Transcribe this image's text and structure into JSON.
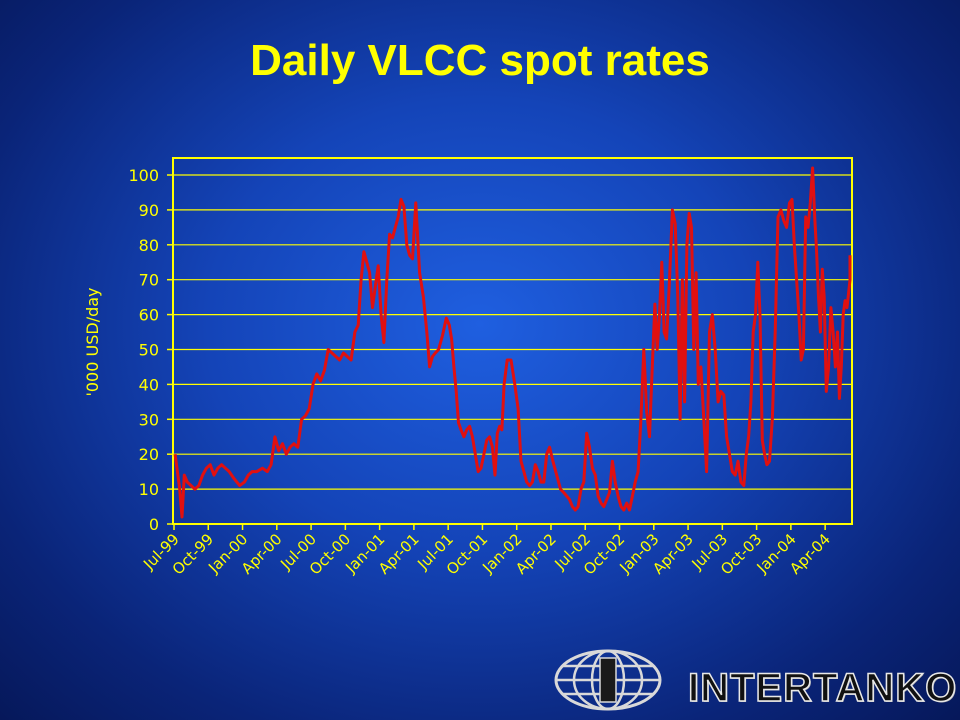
{
  "slide": {
    "title": "Daily VLCC spot rates"
  },
  "brand": {
    "name": "INTERTANKO"
  },
  "colors": {
    "axis": "#ffff00",
    "line": "#e01010",
    "background": "#1444b8"
  },
  "chart_data": {
    "type": "line",
    "title": "Daily VLCC spot rates",
    "xlabel": "",
    "ylabel": "'000 USD/day",
    "ylim": [
      0,
      100
    ],
    "yticks": [
      0,
      10,
      20,
      30,
      40,
      50,
      60,
      70,
      80,
      90,
      100
    ],
    "xlim": [
      "1999-07",
      "2004-06"
    ],
    "xtick_labels": [
      "Jul-99",
      "Oct-99",
      "Jan-00",
      "Apr-00",
      "Jul-00",
      "Oct-00",
      "Jan-01",
      "Apr-01",
      "Jul-01",
      "Oct-01",
      "Jan-02",
      "Apr-02",
      "Jul-02",
      "Oct-02",
      "Jan-03",
      "Apr-03",
      "Jul-03",
      "Oct-03",
      "Jan-04",
      "Apr-04"
    ],
    "grid": true,
    "legend": "none",
    "series": [
      {
        "color": "#e01010",
        "points": [
          [
            "1999-07",
            20
          ],
          [
            "1999-07",
            15
          ],
          [
            "1999-07",
            10
          ],
          [
            "1999-07",
            2
          ],
          [
            "1999-07",
            14
          ],
          [
            "1999-08",
            12
          ],
          [
            "1999-08",
            11
          ],
          [
            "1999-08",
            10
          ],
          [
            "1999-09",
            11
          ],
          [
            "1999-09",
            14
          ],
          [
            "1999-09",
            16
          ],
          [
            "1999-10",
            17
          ],
          [
            "1999-10",
            14
          ],
          [
            "1999-10",
            16
          ],
          [
            "1999-11",
            17
          ],
          [
            "1999-11",
            16
          ],
          [
            "1999-11",
            15
          ],
          [
            "1999-12",
            13
          ],
          [
            "1999-12",
            11
          ],
          [
            "2000-01",
            12
          ],
          [
            "2000-01",
            14
          ],
          [
            "2000-01",
            15
          ],
          [
            "2000-02",
            15
          ],
          [
            "2000-02",
            16
          ],
          [
            "2000-03",
            15
          ],
          [
            "2000-03",
            17
          ],
          [
            "2000-03",
            25
          ],
          [
            "2000-04",
            21
          ],
          [
            "2000-04",
            23
          ],
          [
            "2000-04",
            20
          ],
          [
            "2000-05",
            22
          ],
          [
            "2000-05",
            23
          ],
          [
            "2000-05",
            22
          ],
          [
            "2000-06",
            30
          ],
          [
            "2000-06",
            31
          ],
          [
            "2000-06",
            33
          ],
          [
            "2000-07",
            40
          ],
          [
            "2000-07",
            43
          ],
          [
            "2000-07",
            41
          ],
          [
            "2000-08",
            44
          ],
          [
            "2000-08",
            50
          ],
          [
            "2000-08",
            49
          ],
          [
            "2000-09",
            48
          ],
          [
            "2000-09",
            47
          ],
          [
            "2000-09",
            49
          ],
          [
            "2000-10",
            48
          ],
          [
            "2000-10",
            47
          ],
          [
            "2000-10",
            55
          ],
          [
            "2000-11",
            57
          ],
          [
            "2000-11",
            70
          ],
          [
            "2000-11",
            78
          ],
          [
            "2000-11",
            75
          ],
          [
            "2000-12",
            72
          ],
          [
            "2000-12",
            62
          ],
          [
            "2000-12",
            68
          ],
          [
            "2000-12",
            74
          ],
          [
            "2001-01",
            60
          ],
          [
            "2001-01",
            52
          ],
          [
            "2001-01",
            70
          ],
          [
            "2001-01",
            83
          ],
          [
            "2001-02",
            82
          ],
          [
            "2001-02",
            85
          ],
          [
            "2001-02",
            88
          ],
          [
            "2001-02",
            93
          ],
          [
            "2001-03",
            91
          ],
          [
            "2001-03",
            80
          ],
          [
            "2001-03",
            77
          ],
          [
            "2001-03",
            76
          ],
          [
            "2001-04",
            92
          ],
          [
            "2001-04",
            72
          ],
          [
            "2001-04",
            65
          ],
          [
            "2001-05",
            55
          ],
          [
            "2001-05",
            45
          ],
          [
            "2001-05",
            48
          ],
          [
            "2001-05",
            49
          ],
          [
            "2001-06",
            50
          ],
          [
            "2001-06",
            54
          ],
          [
            "2001-06",
            59
          ],
          [
            "2001-07",
            57
          ],
          [
            "2001-07",
            53
          ],
          [
            "2001-07",
            45
          ],
          [
            "2001-07",
            38
          ],
          [
            "2001-07",
            29
          ],
          [
            "2001-08",
            27
          ],
          [
            "2001-08",
            25
          ],
          [
            "2001-08",
            27
          ],
          [
            "2001-08",
            28
          ],
          [
            "2001-09",
            25
          ],
          [
            "2001-09",
            20
          ],
          [
            "2001-09",
            15
          ],
          [
            "2001-09",
            16
          ],
          [
            "2001-10",
            20
          ],
          [
            "2001-10",
            24
          ],
          [
            "2001-10",
            25
          ],
          [
            "2001-10",
            22
          ],
          [
            "2001-11",
            14
          ],
          [
            "2001-11",
            26
          ],
          [
            "2001-11",
            28
          ],
          [
            "2001-11",
            27
          ],
          [
            "2001-11",
            40
          ],
          [
            "2001-12",
            47
          ],
          [
            "2001-12",
            47
          ],
          [
            "2001-12",
            40
          ],
          [
            "2002-01",
            33
          ],
          [
            "2002-01",
            18
          ],
          [
            "2002-01",
            15
          ],
          [
            "2002-01",
            12
          ],
          [
            "2002-02",
            11
          ],
          [
            "2002-02",
            12
          ],
          [
            "2002-02",
            17
          ],
          [
            "2002-02",
            15
          ],
          [
            "2002-03",
            12
          ],
          [
            "2002-03",
            12
          ],
          [
            "2002-03",
            20
          ],
          [
            "2002-03",
            22
          ],
          [
            "2002-04",
            18
          ],
          [
            "2002-04",
            14
          ],
          [
            "2002-04",
            10
          ],
          [
            "2002-05",
            9
          ],
          [
            "2002-05",
            8
          ],
          [
            "2002-05",
            7
          ],
          [
            "2002-05",
            5
          ],
          [
            "2002-06",
            4
          ],
          [
            "2002-06",
            5
          ],
          [
            "2002-06",
            10
          ],
          [
            "2002-06",
            12
          ],
          [
            "2002-07",
            26
          ],
          [
            "2002-07",
            22
          ],
          [
            "2002-07",
            16
          ],
          [
            "2002-07",
            14
          ],
          [
            "2002-08",
            8
          ],
          [
            "2002-08",
            6
          ],
          [
            "2002-08",
            5
          ],
          [
            "2002-08",
            7
          ],
          [
            "2002-09",
            9
          ],
          [
            "2002-09",
            18
          ],
          [
            "2002-09",
            12
          ],
          [
            "2002-09",
            8
          ],
          [
            "2002-10",
            5
          ],
          [
            "2002-10",
            4
          ],
          [
            "2002-10",
            6
          ],
          [
            "2002-10",
            4
          ],
          [
            "2002-11",
            8
          ],
          [
            "2002-11",
            12
          ],
          [
            "2002-11",
            15
          ],
          [
            "2002-11",
            30
          ],
          [
            "2002-12",
            50
          ],
          [
            "2002-12",
            32
          ],
          [
            "2002-12",
            25
          ],
          [
            "2002-12",
            46
          ],
          [
            "2003-01",
            63
          ],
          [
            "2003-01",
            50
          ],
          [
            "2003-01",
            60
          ],
          [
            "2003-01",
            75
          ],
          [
            "2003-01",
            55
          ],
          [
            "2003-02",
            53
          ],
          [
            "2003-02",
            70
          ],
          [
            "2003-02",
            90
          ],
          [
            "2003-02",
            86
          ],
          [
            "2003-03",
            65
          ],
          [
            "2003-03",
            30
          ],
          [
            "2003-03",
            70
          ],
          [
            "2003-03",
            35
          ],
          [
            "2003-03",
            80
          ],
          [
            "2003-04",
            89
          ],
          [
            "2003-04",
            85
          ],
          [
            "2003-04",
            50
          ],
          [
            "2003-04",
            72
          ],
          [
            "2003-04",
            40
          ],
          [
            "2003-05",
            45
          ],
          [
            "2003-05",
            30
          ],
          [
            "2003-05",
            15
          ],
          [
            "2003-05",
            55
          ],
          [
            "2003-06",
            60
          ],
          [
            "2003-06",
            50
          ],
          [
            "2003-06",
            35
          ],
          [
            "2003-06",
            38
          ],
          [
            "2003-07",
            37
          ],
          [
            "2003-07",
            25
          ],
          [
            "2003-07",
            20
          ],
          [
            "2003-07",
            15
          ],
          [
            "2003-08",
            14
          ],
          [
            "2003-08",
            18
          ],
          [
            "2003-08",
            12
          ],
          [
            "2003-08",
            11
          ],
          [
            "2003-09",
            20
          ],
          [
            "2003-09",
            25
          ],
          [
            "2003-09",
            35
          ],
          [
            "2003-09",
            55
          ],
          [
            "2003-09",
            60
          ],
          [
            "2003-10",
            75
          ],
          [
            "2003-10",
            60
          ],
          [
            "2003-10",
            24
          ],
          [
            "2003-10",
            20
          ],
          [
            "2003-10",
            17
          ],
          [
            "2003-11",
            18
          ],
          [
            "2003-11",
            30
          ],
          [
            "2003-11",
            55
          ],
          [
            "2003-11",
            88
          ],
          [
            "2003-12",
            90
          ],
          [
            "2003-12",
            87
          ],
          [
            "2003-12",
            85
          ],
          [
            "2003-12",
            92
          ],
          [
            "2004-01",
            93
          ],
          [
            "2004-01",
            80
          ],
          [
            "2004-01",
            70
          ],
          [
            "2004-01",
            60
          ],
          [
            "2004-01",
            47
          ],
          [
            "2004-02",
            50
          ],
          [
            "2004-02",
            88
          ],
          [
            "2004-02",
            85
          ],
          [
            "2004-02",
            92
          ],
          [
            "2004-02",
            102
          ],
          [
            "2004-03",
            88
          ],
          [
            "2004-03",
            78
          ],
          [
            "2004-03",
            65
          ],
          [
            "2004-03",
            55
          ],
          [
            "2004-03",
            73
          ],
          [
            "2004-03",
            65
          ],
          [
            "2004-04",
            38
          ],
          [
            "2004-04",
            45
          ],
          [
            "2004-04",
            62
          ],
          [
            "2004-04",
            55
          ],
          [
            "2004-04",
            45
          ],
          [
            "2004-05",
            55
          ],
          [
            "2004-05",
            36
          ],
          [
            "2004-05",
            45
          ],
          [
            "2004-05",
            60
          ],
          [
            "2004-05",
            64
          ],
          [
            "2004-05",
            62
          ],
          [
            "2004-06",
            70
          ],
          [
            "2004-06",
            77
          ]
        ]
      }
    ]
  }
}
